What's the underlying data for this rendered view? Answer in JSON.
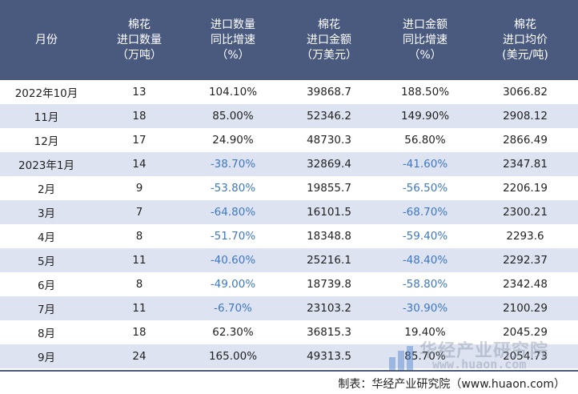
{
  "header": [
    [
      "月份"
    ],
    [
      "棉花",
      "进口数量",
      "（万吨）"
    ],
    [
      "进口数量",
      "同比增速",
      "（%）"
    ],
    [
      "棉花",
      "进口金额",
      "（万美元）"
    ],
    [
      "进口金额",
      "同比增速",
      "（%）"
    ],
    [
      "棉花",
      "进口均价",
      "(美元/吨)"
    ]
  ],
  "rows": [
    [
      "2022年10月",
      "13",
      "104.10%",
      "39868.7",
      "188.50%",
      "3066.82"
    ],
    [
      "11月",
      "18",
      "85.00%",
      "52346.2",
      "149.90%",
      "2908.12"
    ],
    [
      "12月",
      "17",
      "24.90%",
      "48730.3",
      "56.80%",
      "2866.49"
    ],
    [
      "2023年1月",
      "14",
      "-38.70%",
      "32869.4",
      "-41.60%",
      "2347.81"
    ],
    [
      "2月",
      "9",
      "-53.80%",
      "19855.7",
      "-56.50%",
      "2206.19"
    ],
    [
      "3月",
      "7",
      "-64.80%",
      "16101.5",
      "-68.70%",
      "2300.21"
    ],
    [
      "4月",
      "8",
      "-51.70%",
      "18348.8",
      "-59.40%",
      "2293.6"
    ],
    [
      "5月",
      "11",
      "-40.60%",
      "25216.1",
      "-48.40%",
      "2292.37"
    ],
    [
      "6月",
      "8",
      "-49.00%",
      "18739.8",
      "-58.80%",
      "2342.48"
    ],
    [
      "7月",
      "11",
      "-6.70%",
      "23103.2",
      "-30.90%",
      "2100.29"
    ],
    [
      "8月",
      "18",
      "62.30%",
      "36815.3",
      "19.40%",
      "2045.29"
    ],
    [
      "9月",
      "24",
      "165.00%",
      "49313.5",
      "85.70%",
      "2054.73"
    ]
  ],
  "source": "制表：华经产业研究院（www.huaon.com）",
  "watermark": {
    "text": "华经产业研究院",
    "url": "www.huaon.com"
  },
  "colors": {
    "header_bg": "#4a5a7f",
    "stripe": "#dde3f0",
    "negative": "#3d78c8"
  }
}
